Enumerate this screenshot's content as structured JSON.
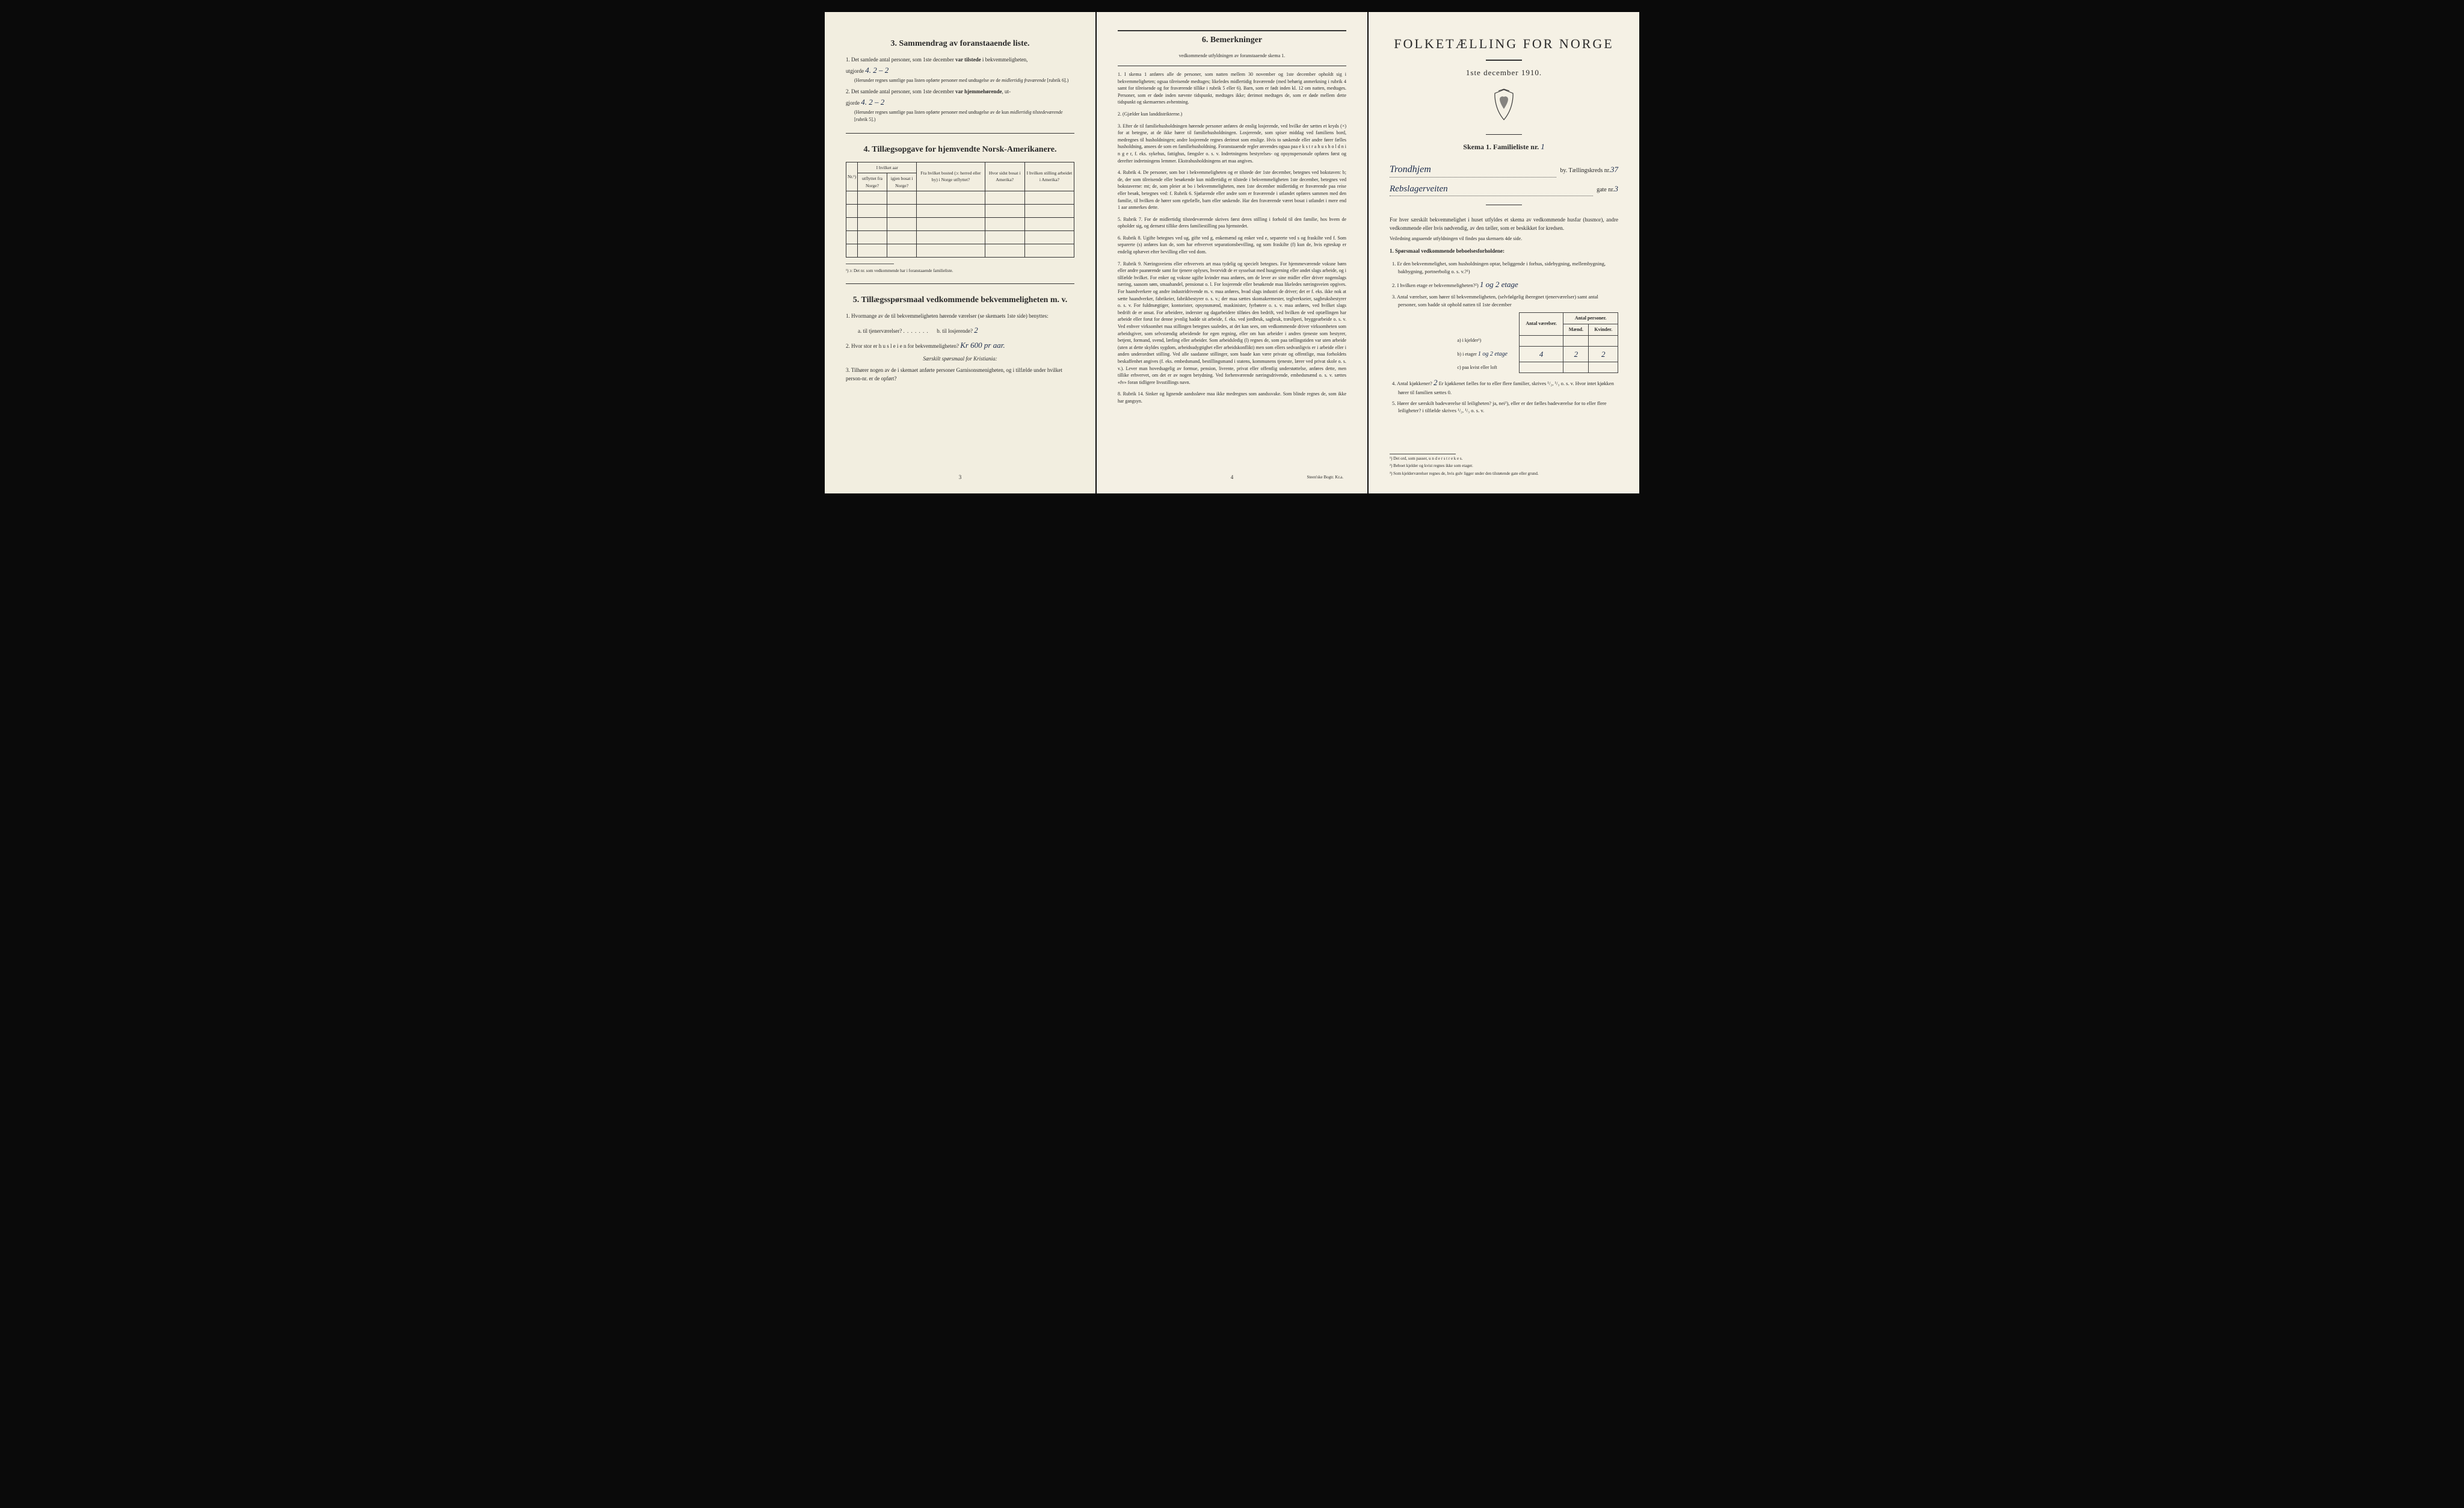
{
  "colors": {
    "paper": "#f4f0e4",
    "ink": "#2a2a2a",
    "handwriting": "#1a2a4a",
    "background": "#0a0a0a"
  },
  "page1": {
    "section3": {
      "title": "3.   Sammendrag av foranstaaende liste.",
      "item1_pre": "1.  Det samlede antal personer, som 1ste december ",
      "item1_bold": "var tilstede",
      "item1_post": " i bekvemmeligheten,",
      "item1_line2": "utgjorde",
      "item1_hw": "4.   2 – 2",
      "item1_paren1": "(Herunder regnes samtlige paa listen opførte personer med undtagelse av de ",
      "item1_paren1_it": "midlertidig fraværende",
      "item1_paren1_end": " [rubrik 6].)",
      "item2_pre": "2.  Det samlede antal personer, som 1ste december ",
      "item2_bold": "var hjemmehørende",
      "item2_post": ", ut-",
      "item2_line2": "gjorde",
      "item2_hw": "4.   2 – 2",
      "item2_paren": "(Herunder regnes samtlige paa listen opførte personer med undtagelse av de kun ",
      "item2_paren_it": "midlertidig tilstedeværende",
      "item2_paren_end": " [rubrik 5].)"
    },
    "section4": {
      "title": "4.   Tillægsopgave for hjemvendte Norsk-Amerikanere.",
      "headers": {
        "nr": "Nr.¹)",
        "aar_group": "I hvilket aar",
        "utflyttet": "utflyttet fra Norge?",
        "bosat": "igjen bosat i Norge?",
        "bosted": "Fra hvilket bosted (ɔ: herred eller by) i Norge utflyttet?",
        "sidst": "Hvor sidst bosat i Amerika?",
        "stilling": "I hvilken stilling arbeidet i Amerika?"
      },
      "footnote": "¹) ɔ: Det nr. som vedkommende har i foranstaaende familieliste."
    },
    "section5": {
      "title": "5.   Tillægsspørsmaal vedkommende bekvemmeligheten m. v.",
      "q1": "1.  Hvormange av de til bekvemmeligheten hørende værelser (se skemaets 1ste side) benyttes:",
      "q1a": "a.  til tjenerværelser?",
      "q1b": "b.  til losjerende?",
      "q1b_hw": "2",
      "q2": "2.  Hvor stor er  h u s l e i e n  for bekvemmeligheten?",
      "q2_hw": "Kr 600 pr aar.",
      "q2_note": "Særskilt spørsmaal for Kristiania:",
      "q3": "3.  Tilhører nogen av de i skemaet anførte personer Garnisonsmenigheten, og i tilfælde under hvilket person-nr. er de opført?"
    },
    "page_num": "3"
  },
  "page2": {
    "title": "6.   Bemerkninger",
    "subtitle": "vedkommende utfyldningen av foranstaaende skema 1.",
    "items": [
      "1.  I skema 1 anføres alle de personer, som natten mellem 30 november og 1ste december opholdt sig i bekvemmeligheten; ogsaa tilreisende medtages; likeledes midlertidig fraværende (med behørig anmerkning i rubrik 4 samt for tilreisende og for fraværende tillike i rubrik 5 eller 6). Barn, som er født inden kl. 12 om natten, medtages. Personer, som er døde inden nævnte tidspunkt, medtages ikke; derimot medtages de, som er døde mellem dette tidspunkt og skemaernes avhentning.",
      "2.  (Gjælder kun landdistrikterne.)",
      "3.  Efter de til familiehusholdningen hørende personer anføres de enslig losjerende, ved hvilke der sættes et kryds (×) for at betegne, at de ikke hører til familiehusholdningen. Losjerende, som spiser middag ved familiens bord, medregnes til husholdningen; andre losjerende regnes derimot som enslige. Hvis to søskende eller andre fører fælles husholdning, ansees de som en familiehusholdning.  Foranstaaende regler anvendes ogsaa paa e k s t r a h u s h o l d n i n g e r, f. eks. sykehus, fattighus, fængsler o. s. v. Indretningens bestyrelses- og opsynspersonale opføres først og derefter indretningens lemmer. Ekstrahusholdningens art maa angives.",
      "4.  Rubrik 4.  De personer, som bor i bekvemmeligheten og er tilstede der 1ste december, betegnes ved bokstaven: b; de, der som tilreisende eller besøkende kun midlertidig er tilstede i bekvemmeligheten 1ste december, betegnes ved bokstaverne: mt; de, som pleier at bo i bekvemmeligheten, men 1ste december midlertidig er fraværende paa reise eller besøk, betegnes ved: f.  Rubrik 6.  Sjøfarende eller andre som er fraværende i utlandet opføres sammen med den familie, til hvilken de hører som egtefælle, barn eller søskende. Har den fraværende været bosat i utlandet i mere end 1 aar anmerkes dette.",
      "5.  Rubrik 7.  For de midlertidig tilstedeværende skrives først deres stilling i forhold til den familie, hos hvem de opholder sig, og dernæst tillike deres familiestilling paa hjemstedet.",
      "6.  Rubrik 8.  Ugifte betegnes ved ug, gifte ved g, enkemænd og enker ved e, separerte ved s og fraskilte ved f. Som separerte (s) anføres kun de, som har erhvervet separationsbevilling, og som fraskilte (f) kun de, hvis egteskap er endelig ophævet efter bevilling eller ved dom.",
      "7.  Rubrik 9.  Næringsveiens eller erhvervets art maa tydelig og specielt betegnes.  For hjemmeværende voksne børn eller andre paarørende samt for tjenere oplyses, hvorvidt de er sysselsat med husgjerning eller andet slags arbeide, og i tilfælde hvilket. For enker og voksne ugifte kvinder maa anføres, om de lever av sine midler eller driver nogenslags næring, saasom søm, smaahandel, pensionat o. l.  For losjerende eller besøkende maa likeledes næringsveien opgives.  For haandverkere og andre industridrivende m. v. maa anføres, hvad slags industri de driver; det er f. eks. ikke nok at sætte haandverker, fabrikeier, fabrikbestyrer o. s. v.; der maa sættes skomakermester, teglverkseier, sagbruksbestyrer o. s. v.  For fuldmægtiger, kontorister, opsynsmænd, maskinister, fyrbøtere o. s. v. maa anføres, ved hvilket slags bedrift de er ansat.  For arbeidere, inderster og dagarbeidere tilføies den bedrift, ved hvilken de ved optællingen har arbeide eller forut for denne jevnlig hadde sit arbeide, f. eks. ved jordbruk, sagbruk, træsliperi, bryggearbeide o. s. v.  Ved enhver virksomhet maa stillingen betegnes saaledes, at det kan sees, om vedkommende driver virksomheten som arbeidsgiver, som selvstændig arbeidende for egen regning, eller om han arbeider i andres tjeneste som bestyrer, betjent, formand, svend, lærling eller arbeider.  Som arbeidsledig (l) regnes de, som paa tællingstiden var uten arbeide (uten at dette skyldes sygdom, arbeidsudygtighet eller arbeidskonflikt) men som ellers sedvanligvis er i arbeide eller i anden underordnet stilling.  Ved alle saadanne stillinger, som baade kan være private og offentlige, maa forholdets beskaffenhet angives (f. eks. embedsmand, bestillingsmand i statens, kommunens tjeneste, lærer ved privat skole o. s. v.).  Lever man hovedsagelig av formue, pension, livrente, privat eller offentlig understøttelse, anføres dette, men tillike erhvervet, om det er av nogen betydning.  Ved forhenværende næringsdrivende, embedsmænd o. s. v. sættes «fv» foran tidligere livsstillings navn.",
      "8.  Rubrik 14.  Sinker og lignende aandssløve maa ikke medregnes som aandssvake. Som blinde regnes de, som ikke har gangsyn."
    ],
    "page_num": "4",
    "printer": "Steen'ske Bogtr.   Kr.a."
  },
  "page3": {
    "main_title": "FOLKETÆLLING FOR NORGE",
    "date": "1ste december 1910.",
    "skema_label": "Skema 1.   Familieliste nr.",
    "skema_hw": "1",
    "city_hw": "Trondhjem",
    "city_suffix": "by.  Tællingskreds nr.",
    "kreds_hw": "37",
    "gate_hw": "Rebslagerveiten",
    "gate_suffix": "gate nr.",
    "gate_nr_hw": "3",
    "intro": "For hver særskilt bekvemmelighet i huset utfyldes et skema av vedkommende husfar (husmor), andre vedkommende eller hvis nødvendig, av den tæller, som er beskikket for kredsen.",
    "intro_note": "Veiledning angaaende utfyldningen vil findes paa skemaets 4de side.",
    "q_header": "1.  Spørsmaal vedkommende beboelsesforholdene:",
    "q1": "1.  Er den bekvemmelighet, som husholdningen optar, beliggende i forhus, sidebygning, mellembygning, bakbygning, portnerbolig o. s. v.?¹)",
    "q2": "2.  I hvilken etage er bekvemmeligheten?²)",
    "q2_hw": "1 og 2 etage",
    "q3": "3.  Antal værelser, som hører til bekvemmeligheten, (selvfølgelig iberegnet tjenerværelser) samt antal personer, som hadde sit ophold natten til 1ste december",
    "rooms": {
      "col_v": "Antal værelser.",
      "col_p": "Antal personer.",
      "col_m": "Mænd.",
      "col_k": "Kvinder.",
      "row_a": "a) i kjelder³)",
      "row_b": "b) i etager",
      "row_b_hw": "1 og 2 etage",
      "row_c": "c) paa kvist eller loft",
      "b_v": "4",
      "b_m": "2",
      "b_k": "2"
    },
    "q4": "4.  Antal kjøkkener?",
    "q4_hw": "2",
    "q4_post": "   Er kjøkkenet fælles for to eller flere familier, skrives ¹/₂, ¹/₃ o. s. v.  Hvor intet kjøkken hører til familien sættes 0.",
    "q5": "5.  Hører der særskilt badeværelse til leiligheten?  ja,  nei¹), eller er der fælles badeværelse for to eller flere leiligheter?  i tilfælde skrives ¹/₂, ¹/₃ o. s. v.",
    "q5_underline": "nei",
    "footnotes": [
      "¹)  Det ord, som passer, u n d e r s t r e k e s.",
      "²)  Beboet kjelder og kvist regnes ikke som etager.",
      "³)  Som kjelderværelser regnes de, hvis gulv ligger under den tilstøtende gate eller grund."
    ]
  }
}
